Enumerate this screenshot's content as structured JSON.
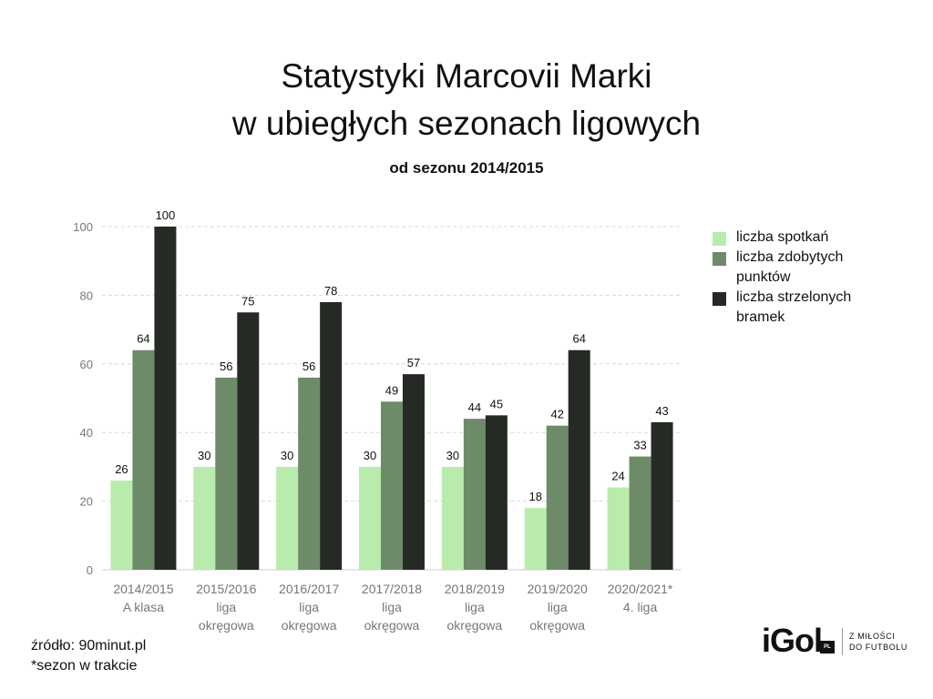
{
  "colors": {
    "background": "#ffffff",
    "grid": "#d9d9d9",
    "axis_text": "#777777",
    "label_text": "#111111"
  },
  "chart_data": {
    "type": "bar",
    "title": "Statystyki Marcovii Marki w ubiegłych sezonach ligowych",
    "title_lines": [
      "Statystyki Marcovii Marki",
      "w ubiegłych sezonach ligowych"
    ],
    "subtitle": "od sezonu 2014/2015",
    "categories": [
      [
        "2014/2015",
        "A klasa"
      ],
      [
        "2015/2016",
        "liga",
        "okręgowa"
      ],
      [
        "2016/2017",
        "liga",
        "okręgowa"
      ],
      [
        "2017/2018",
        "liga",
        "okręgowa"
      ],
      [
        "2018/2019",
        "liga",
        "okręgowa"
      ],
      [
        "2019/2020",
        "liga",
        "okręgowa"
      ],
      [
        "2020/2021*",
        "4. liga"
      ]
    ],
    "series": [
      {
        "name": "liczba spotkań",
        "color": "#b9ecac",
        "values": [
          26,
          30,
          30,
          30,
          30,
          18,
          24
        ]
      },
      {
        "name": "liczba zdobytych punktów",
        "legend_lines": [
          "liczba zdobytych",
          "punktów"
        ],
        "color": "#6e8b69",
        "values": [
          64,
          56,
          56,
          49,
          44,
          42,
          33
        ]
      },
      {
        "name": "liczba strzelonych bramek",
        "legend_lines": [
          "liczba strzelonych",
          "bramek"
        ],
        "color": "#252a25",
        "values": [
          100,
          75,
          78,
          57,
          45,
          64,
          43
        ]
      }
    ],
    "ylim": [
      0,
      100
    ],
    "yticks": [
      0,
      20,
      40,
      60,
      80,
      100
    ],
    "xlabel": "",
    "ylabel": "",
    "grid": true,
    "legend_position": "right"
  },
  "footer": {
    "source": "źródło: 90minut.pl",
    "note": "*sezon w trakcie"
  },
  "brand": {
    "logo": "iGol",
    "badge": "PL",
    "tagline_lines": [
      "Z MIŁOŚCI",
      "DO FUTBOLU"
    ]
  }
}
